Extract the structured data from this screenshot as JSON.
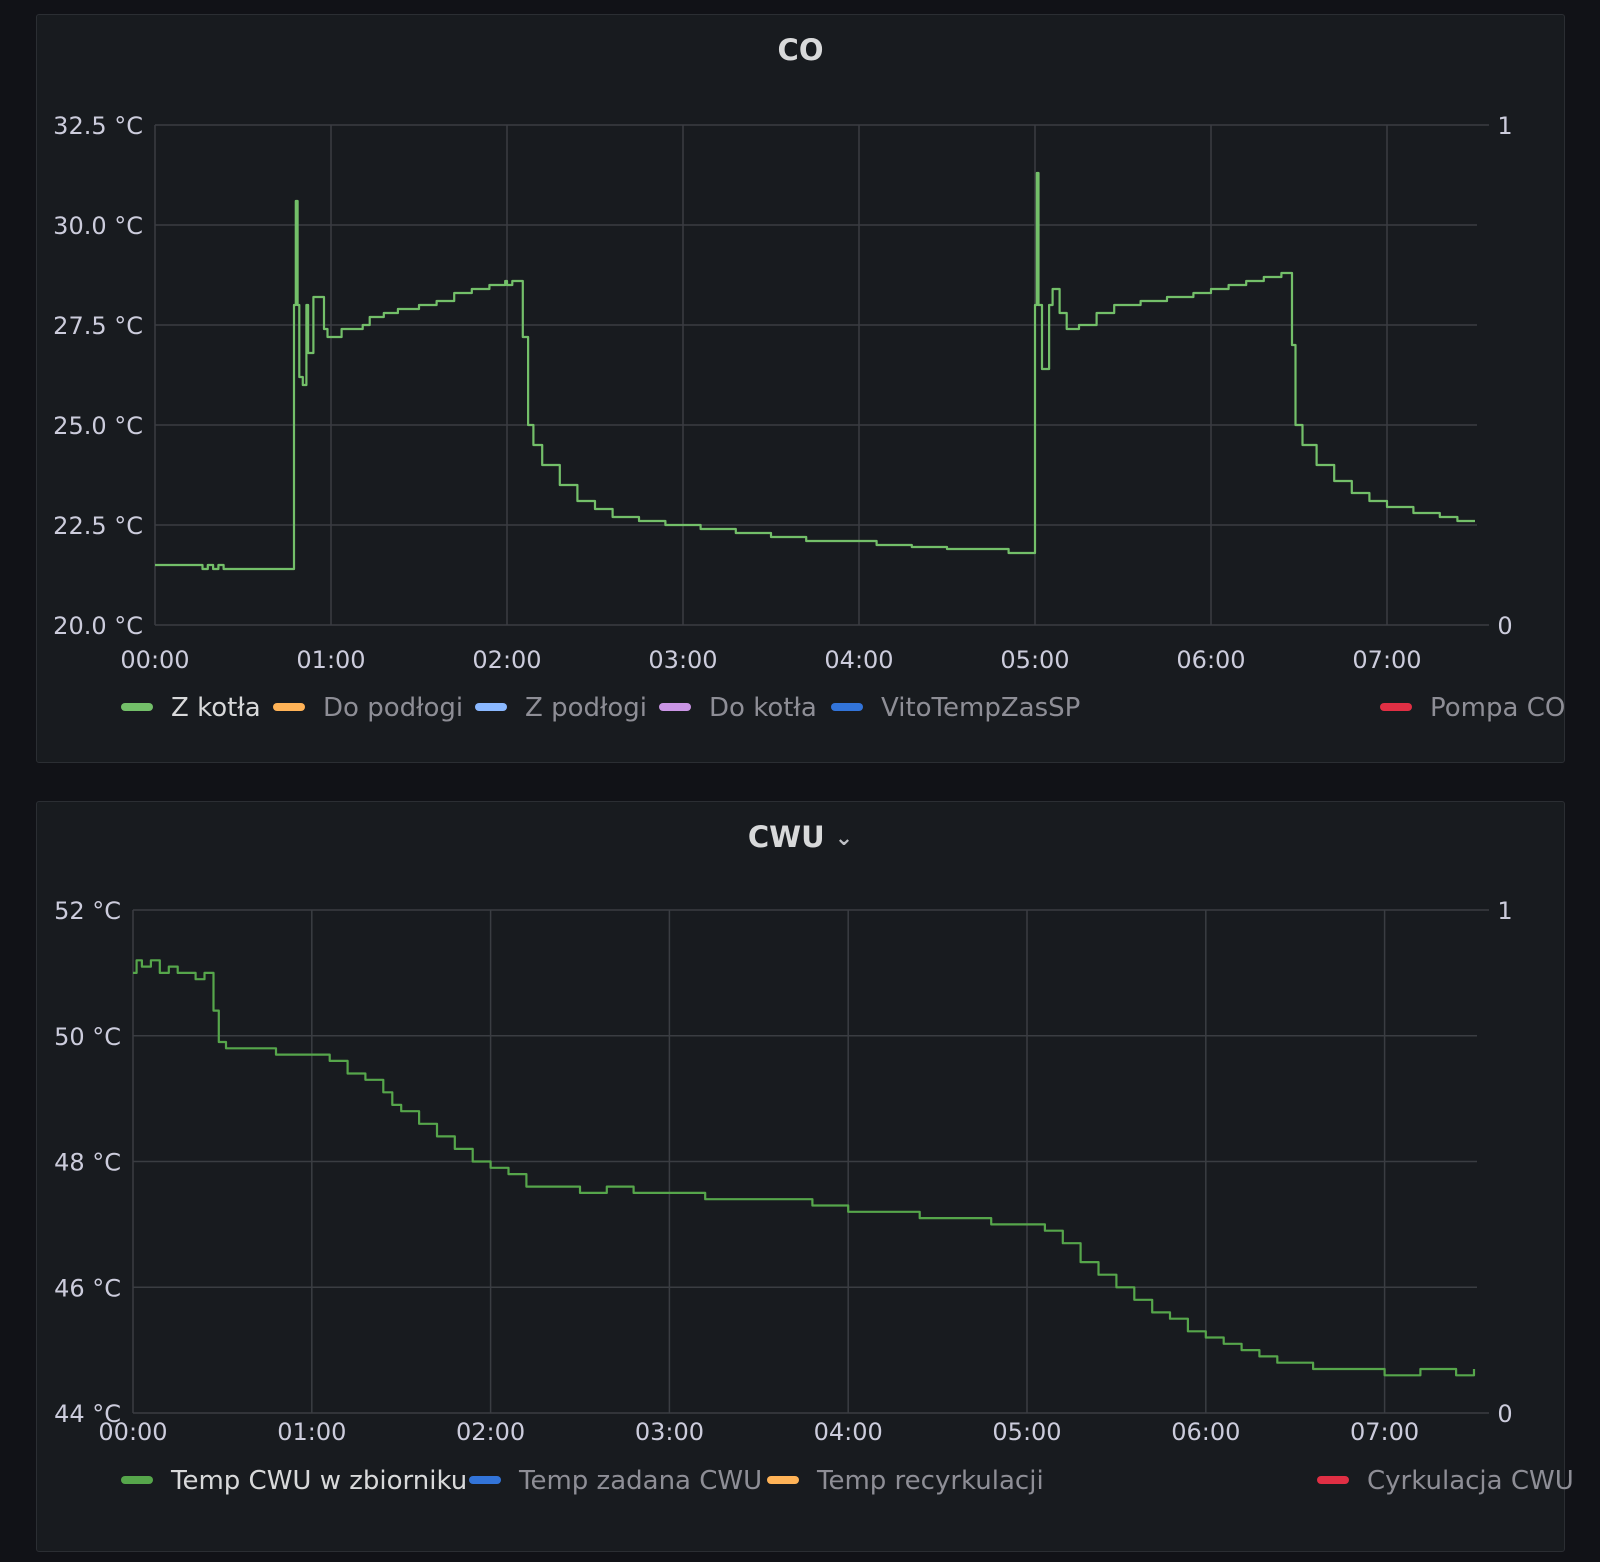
{
  "chart_data": [
    {
      "type": "line",
      "title": "CO",
      "x_ticks": [
        "00:00",
        "01:00",
        "02:00",
        "03:00",
        "04:00",
        "05:00",
        "06:00",
        "07:00"
      ],
      "xlim_hours": [
        0,
        7.5
      ],
      "ylim": [
        20.0,
        32.5
      ],
      "y_ticks": [
        "32.5 °C",
        "30.0 °C",
        "27.5 °C",
        "25.0 °C",
        "22.5 °C",
        "20.0 °C"
      ],
      "y_tick_values": [
        32.5,
        30.0,
        27.5,
        25.0,
        22.5,
        20.0
      ],
      "y2_ticks": [
        "1",
        "0"
      ],
      "grid": true,
      "line_color": "#73bf69",
      "series": [
        {
          "name": "Z kotła",
          "points": [
            [
              0,
              21.5
            ],
            [
              0.25,
              21.5
            ],
            [
              0.27,
              21.4
            ],
            [
              0.3,
              21.5
            ],
            [
              0.33,
              21.4
            ],
            [
              0.36,
              21.5
            ],
            [
              0.39,
              21.4
            ],
            [
              0.78,
              21.4
            ],
            [
              0.79,
              28.0
            ],
            [
              0.8,
              30.6
            ],
            [
              0.81,
              28.0
            ],
            [
              0.82,
              26.2
            ],
            [
              0.84,
              26.0
            ],
            [
              0.86,
              28.0
            ],
            [
              0.87,
              26.8
            ],
            [
              0.9,
              28.2
            ],
            [
              0.92,
              28.2
            ],
            [
              0.96,
              27.4
            ],
            [
              0.98,
              27.2
            ],
            [
              1.02,
              27.2
            ],
            [
              1.06,
              27.4
            ],
            [
              1.18,
              27.5
            ],
            [
              1.22,
              27.7
            ],
            [
              1.3,
              27.8
            ],
            [
              1.38,
              27.9
            ],
            [
              1.5,
              28.0
            ],
            [
              1.6,
              28.1
            ],
            [
              1.7,
              28.3
            ],
            [
              1.8,
              28.4
            ],
            [
              1.9,
              28.5
            ],
            [
              1.97,
              28.5
            ],
            [
              1.99,
              28.6
            ],
            [
              2.0,
              28.5
            ],
            [
              2.03,
              28.6
            ],
            [
              2.07,
              28.6
            ],
            [
              2.09,
              27.2
            ],
            [
              2.12,
              25.0
            ],
            [
              2.15,
              24.5
            ],
            [
              2.2,
              24.0
            ],
            [
              2.3,
              23.5
            ],
            [
              2.4,
              23.1
            ],
            [
              2.5,
              22.9
            ],
            [
              2.6,
              22.7
            ],
            [
              2.75,
              22.6
            ],
            [
              2.9,
              22.5
            ],
            [
              3.1,
              22.4
            ],
            [
              3.3,
              22.3
            ],
            [
              3.5,
              22.2
            ],
            [
              3.7,
              22.1
            ],
            [
              3.9,
              22.1
            ],
            [
              4.1,
              22.0
            ],
            [
              4.3,
              21.95
            ],
            [
              4.5,
              21.9
            ],
            [
              4.75,
              21.9
            ],
            [
              4.85,
              21.8
            ],
            [
              4.99,
              21.8
            ],
            [
              5.0,
              28.0
            ],
            [
              5.01,
              31.3
            ],
            [
              5.02,
              28.0
            ],
            [
              5.04,
              26.4
            ],
            [
              5.06,
              26.4
            ],
            [
              5.08,
              28.0
            ],
            [
              5.1,
              28.4
            ],
            [
              5.14,
              27.8
            ],
            [
              5.18,
              27.4
            ],
            [
              5.25,
              27.5
            ],
            [
              5.35,
              27.8
            ],
            [
              5.45,
              28.0
            ],
            [
              5.6,
              28.1
            ],
            [
              5.75,
              28.2
            ],
            [
              5.9,
              28.3
            ],
            [
              6.0,
              28.4
            ],
            [
              6.1,
              28.5
            ],
            [
              6.2,
              28.6
            ],
            [
              6.3,
              28.7
            ],
            [
              6.4,
              28.8
            ],
            [
              6.45,
              28.8
            ],
            [
              6.46,
              27.0
            ],
            [
              6.48,
              25.0
            ],
            [
              6.52,
              24.5
            ],
            [
              6.6,
              24.0
            ],
            [
              6.7,
              23.6
            ],
            [
              6.8,
              23.3
            ],
            [
              6.9,
              23.1
            ],
            [
              7.0,
              22.95
            ],
            [
              7.15,
              22.8
            ],
            [
              7.3,
              22.7
            ],
            [
              7.4,
              22.6
            ],
            [
              7.5,
              22.6
            ]
          ]
        }
      ],
      "legend": [
        {
          "name": "Z kotła",
          "color": "#73bf69",
          "active": true
        },
        {
          "name": "Do podłogi",
          "color": "#ffb357",
          "active": false
        },
        {
          "name": "Z podłogi",
          "color": "#8ab8ff",
          "active": false
        },
        {
          "name": "Do kotła",
          "color": "#ca95e5",
          "active": false
        },
        {
          "name": "VitoTempZasSP",
          "color": "#3274d9",
          "active": false
        },
        {
          "name": "Pompa CO",
          "color": "#e02f44",
          "active": false
        }
      ]
    },
    {
      "type": "line",
      "title": "CWU",
      "x_ticks": [
        "00:00",
        "01:00",
        "02:00",
        "03:00",
        "04:00",
        "05:00",
        "06:00",
        "07:00"
      ],
      "xlim_hours": [
        0,
        7.5
      ],
      "ylim": [
        44,
        52
      ],
      "y_ticks": [
        "52 °C",
        "50 °C",
        "48 °C",
        "46 °C",
        "44 °C"
      ],
      "y_tick_values": [
        52,
        50,
        48,
        46,
        44
      ],
      "y2_ticks": [
        "1",
        "0"
      ],
      "grid": true,
      "line_color": "#56a64b",
      "series": [
        {
          "name": "Temp CWU w zbiorniku",
          "points": [
            [
              0,
              51.0
            ],
            [
              0.02,
              51.2
            ],
            [
              0.05,
              51.1
            ],
            [
              0.1,
              51.2
            ],
            [
              0.15,
              51.0
            ],
            [
              0.2,
              51.1
            ],
            [
              0.25,
              51.0
            ],
            [
              0.3,
              51.0
            ],
            [
              0.35,
              50.9
            ],
            [
              0.4,
              51.0
            ],
            [
              0.43,
              51.0
            ],
            [
              0.45,
              50.4
            ],
            [
              0.48,
              49.9
            ],
            [
              0.52,
              49.8
            ],
            [
              0.6,
              49.8
            ],
            [
              0.7,
              49.8
            ],
            [
              0.8,
              49.7
            ],
            [
              1.0,
              49.7
            ],
            [
              1.1,
              49.6
            ],
            [
              1.2,
              49.4
            ],
            [
              1.3,
              49.3
            ],
            [
              1.4,
              49.1
            ],
            [
              1.45,
              48.9
            ],
            [
              1.5,
              48.8
            ],
            [
              1.6,
              48.6
            ],
            [
              1.7,
              48.4
            ],
            [
              1.8,
              48.2
            ],
            [
              1.9,
              48.0
            ],
            [
              2.0,
              47.9
            ],
            [
              2.1,
              47.8
            ],
            [
              2.2,
              47.6
            ],
            [
              2.3,
              47.6
            ],
            [
              2.5,
              47.5
            ],
            [
              2.65,
              47.6
            ],
            [
              2.8,
              47.5
            ],
            [
              3.0,
              47.5
            ],
            [
              3.2,
              47.4
            ],
            [
              3.4,
              47.4
            ],
            [
              3.6,
              47.4
            ],
            [
              3.8,
              47.3
            ],
            [
              4.0,
              47.2
            ],
            [
              4.2,
              47.2
            ],
            [
              4.4,
              47.1
            ],
            [
              4.6,
              47.1
            ],
            [
              4.8,
              47.0
            ],
            [
              5.0,
              47.0
            ],
            [
              5.1,
              46.9
            ],
            [
              5.2,
              46.7
            ],
            [
              5.3,
              46.4
            ],
            [
              5.4,
              46.2
            ],
            [
              5.5,
              46.0
            ],
            [
              5.6,
              45.8
            ],
            [
              5.7,
              45.6
            ],
            [
              5.8,
              45.5
            ],
            [
              5.9,
              45.3
            ],
            [
              6.0,
              45.2
            ],
            [
              6.1,
              45.1
            ],
            [
              6.2,
              45.0
            ],
            [
              6.3,
              44.9
            ],
            [
              6.4,
              44.8
            ],
            [
              6.5,
              44.8
            ],
            [
              6.6,
              44.7
            ],
            [
              6.7,
              44.7
            ],
            [
              6.8,
              44.7
            ],
            [
              6.9,
              44.7
            ],
            [
              7.0,
              44.6
            ],
            [
              7.1,
              44.6
            ],
            [
              7.2,
              44.7
            ],
            [
              7.3,
              44.7
            ],
            [
              7.4,
              44.6
            ],
            [
              7.5,
              44.7
            ]
          ]
        }
      ],
      "legend": [
        {
          "name": "Temp CWU w zbiorniku",
          "color": "#56a64b",
          "active": true
        },
        {
          "name": "Temp zadana CWU",
          "color": "#3274d9",
          "active": false
        },
        {
          "name": "Temp recyrkulacji",
          "color": "#ffb357",
          "active": false
        },
        {
          "name": "Cyrkulacja CWU",
          "color": "#e02f44",
          "active": false
        }
      ]
    }
  ],
  "panels": {
    "co": {
      "title": "CO"
    },
    "cwu": {
      "title": "CWU",
      "chevron": "chevron-down-icon"
    }
  }
}
